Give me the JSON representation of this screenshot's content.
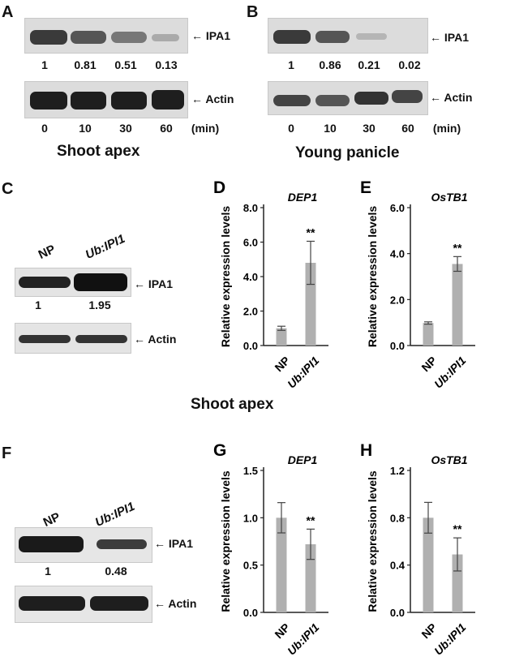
{
  "panels": {
    "A": {
      "letter": "A",
      "ipa_label": "IPA1",
      "actin_label": "Actin",
      "ratios": [
        "1",
        "0.81",
        "0.51",
        "0.13"
      ],
      "times": [
        "0",
        "10",
        "30",
        "60"
      ],
      "unit": "(min)",
      "caption": "Shoot apex"
    },
    "B": {
      "letter": "B",
      "ipa_label": "IPA1",
      "actin_label": "Actin",
      "ratios": [
        "1",
        "0.86",
        "0.21",
        "0.02"
      ],
      "times": [
        "0",
        "10",
        "30",
        "60"
      ],
      "unit": "(min)",
      "caption": "Young panicle"
    },
    "C": {
      "letter": "C",
      "lanes": [
        "NP",
        "Ub:IPI1"
      ],
      "ipa_label": "IPA1",
      "actin_label": "Actin",
      "ratios": [
        "1",
        "1.95"
      ]
    },
    "F": {
      "letter": "F",
      "lanes": [
        "NP",
        "Ub:IPI1"
      ],
      "ipa_label": "IPA1",
      "actin_label": "Actin",
      "ratios": [
        "1",
        "0.48"
      ]
    },
    "middle_caption": "Shoot apex"
  },
  "chart_data": [
    {
      "panel": "D",
      "type": "bar",
      "title": "DEP1",
      "ylabel": "Relative expression levels",
      "categories": [
        "NP",
        "Ub:IPI1"
      ],
      "values": [
        1.0,
        4.8
      ],
      "errors": [
        0.12,
        1.25
      ],
      "significance": [
        "",
        "**"
      ],
      "ylim": [
        0,
        8
      ],
      "yticks": [
        "0.0",
        "2.0",
        "4.0",
        "6.0",
        "8.0"
      ],
      "bar_color": "#b0b0b0"
    },
    {
      "panel": "E",
      "type": "bar",
      "title": "OsTB1",
      "ylabel": "Relative expression levels",
      "categories": [
        "NP",
        "Ub:IPI1"
      ],
      "values": [
        0.98,
        3.55
      ],
      "errors": [
        0.05,
        0.32
      ],
      "significance": [
        "",
        "**"
      ],
      "ylim": [
        0,
        6
      ],
      "yticks": [
        "0.0",
        "2.0",
        "4.0",
        "6.0"
      ],
      "bar_color": "#b0b0b0"
    },
    {
      "panel": "G",
      "type": "bar",
      "title": "DEP1",
      "ylabel": "Relative expression levels",
      "categories": [
        "NP",
        "Ub:IPI1"
      ],
      "values": [
        1.0,
        0.72
      ],
      "errors": [
        0.16,
        0.16
      ],
      "significance": [
        "",
        "**"
      ],
      "ylim": [
        0,
        1.5
      ],
      "yticks": [
        "0.0",
        "0.5",
        "1.0",
        "1.5"
      ],
      "bar_color": "#b0b0b0"
    },
    {
      "panel": "H",
      "type": "bar",
      "title": "OsTB1",
      "ylabel": "Relative expression levels",
      "categories": [
        "NP",
        "Ub:IPI1"
      ],
      "values": [
        0.8,
        0.49
      ],
      "errors": [
        0.13,
        0.14
      ],
      "significance": [
        "",
        "**"
      ],
      "ylim": [
        0,
        1.2
      ],
      "yticks": [
        "0.0",
        "0.4",
        "0.8",
        "1.2"
      ],
      "bar_color": "#b0b0b0"
    }
  ]
}
